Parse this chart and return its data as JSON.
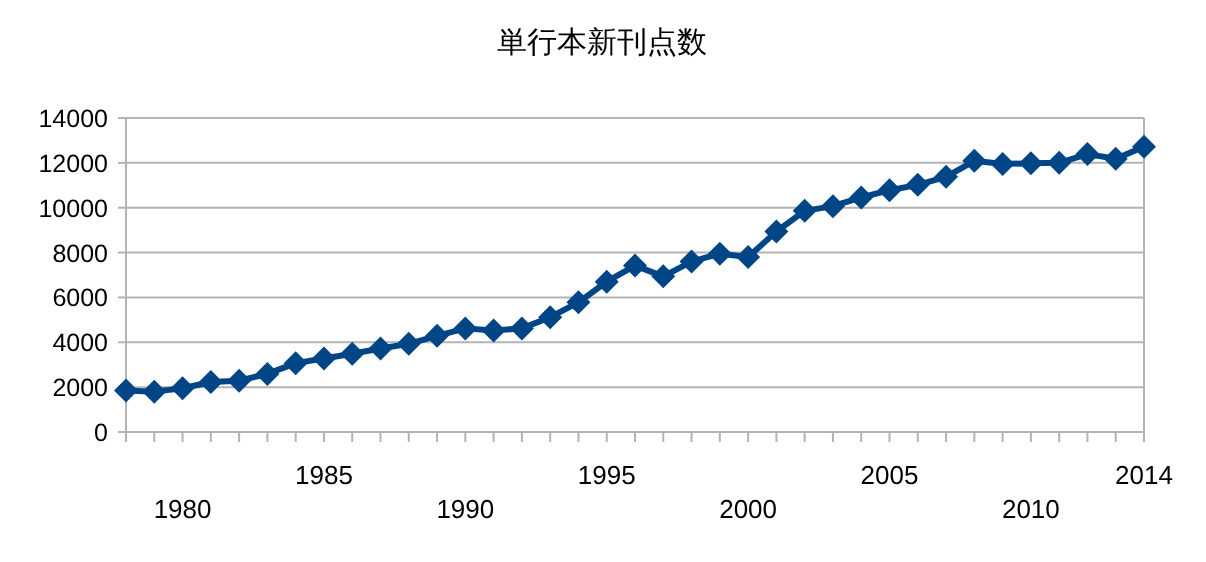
{
  "chart_data": {
    "type": "line",
    "title": "単行本新刊点数",
    "categories": [
      null,
      null,
      "1980",
      null,
      null,
      null,
      null,
      "1985",
      null,
      null,
      null,
      null,
      "1990",
      null,
      null,
      null,
      null,
      "1995",
      null,
      null,
      null,
      null,
      "2000",
      null,
      null,
      null,
      null,
      "2005",
      null,
      null,
      null,
      null,
      "2010",
      null,
      null,
      null,
      "2014"
    ],
    "series": [
      {
        "color": "#004586",
        "values": [
          1850,
          1800,
          1950,
          2230,
          2290,
          2590,
          3070,
          3280,
          3490,
          3720,
          3930,
          4290,
          4620,
          4530,
          4620,
          5120,
          5780,
          6700,
          7420,
          6940,
          7600,
          7950,
          7800,
          8940,
          9860,
          10070,
          10460,
          10780,
          11020,
          11380,
          12090,
          11950,
          11980,
          12000,
          12390,
          12180,
          12720
        ]
      }
    ],
    "ylim": [
      0,
      14000
    ],
    "yticks": [
      0,
      2000,
      4000,
      6000,
      8000,
      10000,
      12000,
      14000
    ],
    "grid": "y",
    "marker": "diamond",
    "line_style": "solid"
  }
}
